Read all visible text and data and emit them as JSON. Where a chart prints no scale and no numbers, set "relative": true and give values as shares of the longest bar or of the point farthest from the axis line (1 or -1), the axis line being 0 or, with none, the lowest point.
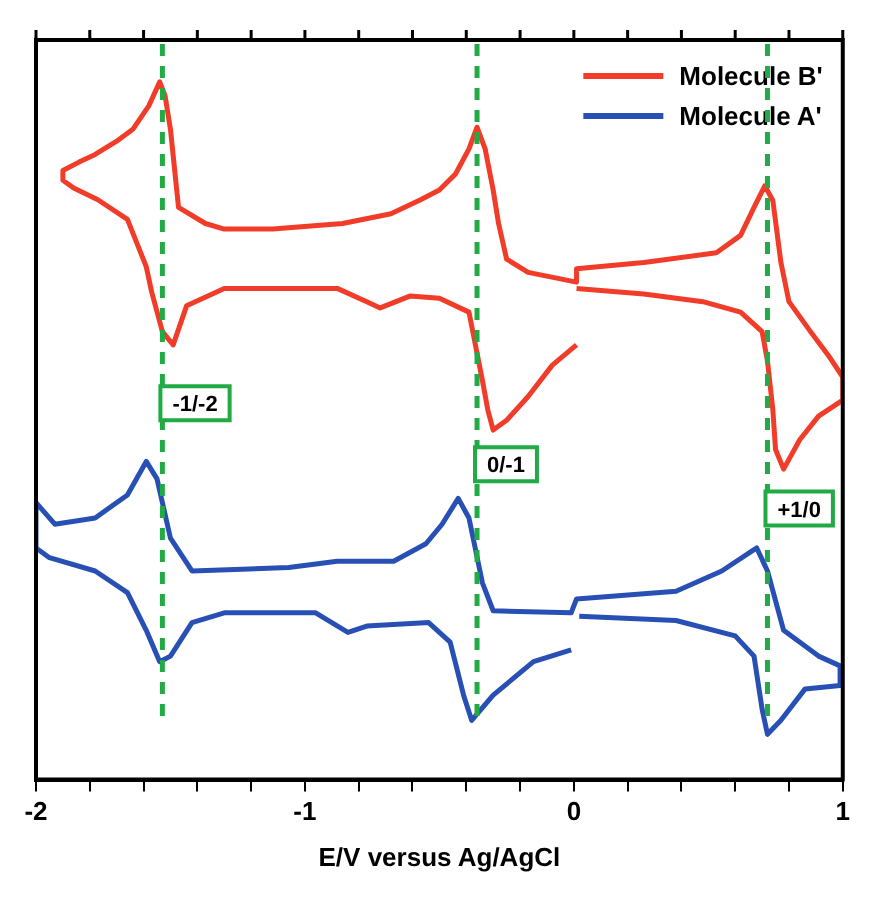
{
  "chart_data": {
    "type": "line",
    "relative": true,
    "xlabel": "E/V versus Ag/AgCl",
    "xlim": [
      -2,
      1
    ],
    "xticks": [
      -2,
      {
        "value": -1.8,
        "label": null
      },
      {
        "value": -1.6,
        "label": null
      },
      {
        "value": -1.4,
        "label": null
      },
      {
        "value": -1.2,
        "label": null
      },
      -1,
      {
        "value": -0.8,
        "label": null
      },
      {
        "value": -0.6,
        "label": null
      },
      {
        "value": -0.4,
        "label": null
      },
      {
        "value": -0.2,
        "label": null
      },
      0,
      {
        "value": 0.2,
        "label": null
      },
      {
        "value": 0.4,
        "label": null
      },
      {
        "value": 0.6,
        "label": null
      },
      {
        "value": 0.8,
        "label": null
      },
      1
    ],
    "tick_labels": "x",
    "legend": "top right",
    "grid": false,
    "series": [
      {
        "name": "Molecule B'",
        "color": "#f03c28",
        "x": [
          0.01,
          -0.08,
          -0.17,
          -0.25,
          -0.3,
          -0.32,
          -0.34,
          -0.39,
          -0.5,
          -0.61,
          -0.72,
          -0.77,
          -0.88,
          -1.3,
          -1.44,
          -1.49,
          -1.53,
          -1.57,
          -1.59,
          -1.66,
          -1.77,
          -1.86,
          -1.9,
          -1.9,
          -1.84,
          -1.78,
          -1.7,
          -1.64,
          -1.58,
          -1.54,
          -1.52,
          -1.5,
          -1.47,
          -1.37,
          -1.3,
          -1.12,
          -0.86,
          -0.68,
          -0.57,
          -0.5,
          -0.44,
          -0.39,
          -0.36,
          -0.33,
          -0.3,
          -0.28,
          -0.25,
          -0.17,
          0.01,
          0.01,
          0.26,
          0.53,
          0.62,
          0.67,
          0.71,
          0.74,
          0.77,
          0.8,
          0.88,
          0.95,
          1.0,
          1.0,
          0.91,
          0.84,
          0.78,
          0.75,
          0.74,
          0.72,
          0.7,
          0.62,
          0.48,
          0.26,
          0.01
        ],
        "values": [
          0.623,
          0.594,
          0.549,
          0.515,
          0.501,
          0.53,
          0.572,
          0.67,
          0.69,
          0.693,
          0.676,
          0.685,
          0.704,
          0.704,
          0.679,
          0.623,
          0.642,
          0.699,
          0.735,
          0.803,
          0.831,
          0.848,
          0.859,
          0.873,
          0.885,
          0.896,
          0.915,
          0.932,
          0.966,
          1,
          0.98,
          0.932,
          0.82,
          0.797,
          0.789,
          0.789,
          0.797,
          0.811,
          0.831,
          0.845,
          0.868,
          0.904,
          0.935,
          0.904,
          0.845,
          0.797,
          0.746,
          0.727,
          0.713,
          0.732,
          0.741,
          0.755,
          0.78,
          0.82,
          0.851,
          0.83,
          0.741,
          0.685,
          0.642,
          0.606,
          0.577,
          0.544,
          0.521,
          0.487,
          0.445,
          0.473,
          0.53,
          0.6,
          0.642,
          0.67,
          0.685,
          0.696,
          0.704
        ]
      },
      {
        "name": "Molecule A'",
        "color": "#2850b4",
        "x": [
          -0.01,
          -0.15,
          -0.3,
          -0.38,
          -0.41,
          -0.46,
          -0.54,
          -0.77,
          -0.84,
          -0.96,
          -1.3,
          -1.42,
          -1.5,
          -1.54,
          -1.59,
          -1.66,
          -1.78,
          -1.95,
          -2.0,
          -2.0,
          -1.93,
          -1.78,
          -1.66,
          -1.59,
          -1.55,
          -1.5,
          -1.42,
          -1.06,
          -0.88,
          -0.67,
          -0.55,
          -0.49,
          -0.43,
          -0.39,
          -0.34,
          -0.3,
          -0.01,
          0.01,
          0.38,
          0.55,
          0.68,
          0.72,
          0.78,
          0.91,
          0.99,
          0.99,
          0.86,
          0.77,
          0.72,
          0.7,
          0.67,
          0.6,
          0.38,
          0.02
        ],
        "values": [
          0.186,
          0.169,
          0.121,
          0.085,
          0.121,
          0.197,
          0.225,
          0.22,
          0.211,
          0.239,
          0.239,
          0.225,
          0.177,
          0.169,
          0.214,
          0.268,
          0.299,
          0.318,
          0.332,
          0.397,
          0.366,
          0.375,
          0.408,
          0.456,
          0.431,
          0.346,
          0.299,
          0.304,
          0.313,
          0.313,
          0.338,
          0.366,
          0.403,
          0.375,
          0.282,
          0.242,
          0.239,
          0.259,
          0.27,
          0.299,
          0.332,
          0.299,
          0.214,
          0.177,
          0.163,
          0.135,
          0.13,
          0.085,
          0.065,
          0.101,
          0.177,
          0.206,
          0.228,
          0.234
        ]
      }
    ],
    "ref_lines": [
      {
        "axis": "x",
        "value": -1.53,
        "label": "-1/-2",
        "color": "#22aa44",
        "line_style": "dashed"
      },
      {
        "axis": "x",
        "value": -0.36,
        "label": "0/-1",
        "color": "#22aa44",
        "line_style": "dashed"
      },
      {
        "axis": "x",
        "value": 0.72,
        "label": "+1/0",
        "color": "#22aa44",
        "line_style": "dashed"
      }
    ]
  }
}
